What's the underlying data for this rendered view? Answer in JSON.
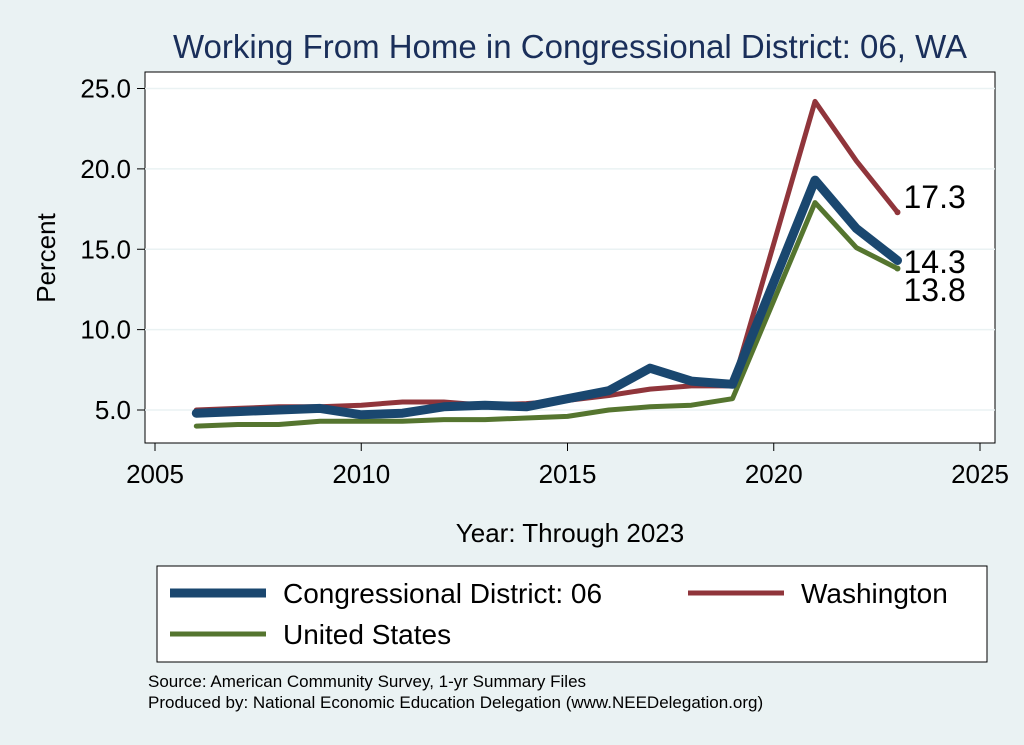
{
  "chart_data": {
    "type": "line",
    "title": "Working From Home in Congressional District: 06, WA",
    "xlabel": "Year: Through 2023",
    "ylabel": "Percent",
    "xlim": [
      2005,
      2025
    ],
    "ylim": [
      3.0,
      26.0
    ],
    "x_ticks": [
      "2005",
      "2010",
      "2015",
      "2020",
      "2025"
    ],
    "y_ticks": [
      "5.0",
      "10.0",
      "15.0",
      "20.0",
      "25.0"
    ],
    "grid": true,
    "legend_position": "bottom",
    "x": [
      2006,
      2007,
      2008,
      2009,
      2010,
      2011,
      2012,
      2013,
      2014,
      2015,
      2016,
      2017,
      2018,
      2019,
      2021,
      2022,
      2023
    ],
    "series": [
      {
        "name": "Congressional District: 06",
        "color": "#1a476f",
        "values": [
          4.8,
          4.9,
          5.0,
          5.1,
          4.7,
          4.8,
          5.2,
          5.3,
          5.2,
          5.7,
          6.2,
          7.6,
          6.8,
          6.6,
          19.3,
          16.3,
          14.3
        ],
        "end_label": "14.3"
      },
      {
        "name": "Washington",
        "color": "#90353b",
        "values": [
          5.0,
          5.1,
          5.2,
          5.2,
          5.3,
          5.5,
          5.5,
          5.3,
          5.4,
          5.6,
          5.9,
          6.3,
          6.5,
          6.5,
          24.2,
          20.5,
          17.3
        ],
        "end_label": "17.3"
      },
      {
        "name": "United States",
        "color": "#55752f",
        "values": [
          4.0,
          4.1,
          4.1,
          4.3,
          4.3,
          4.3,
          4.4,
          4.4,
          4.5,
          4.6,
          5.0,
          5.2,
          5.3,
          5.7,
          17.9,
          15.1,
          13.8
        ],
        "end_label": "13.8"
      }
    ]
  },
  "source_note": "Source: American Community Survey, 1-yr Summary Files",
  "produced_note": "Produced by: National Economic Education Delegation (www.NEEDelegation.org)"
}
